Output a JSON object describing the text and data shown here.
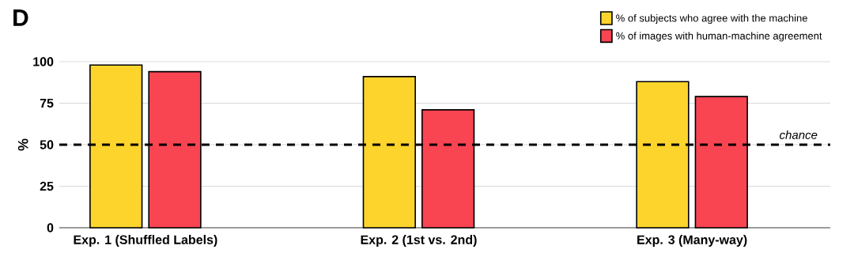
{
  "chart_data": {
    "type": "bar",
    "title": "D",
    "ylabel": "%",
    "categories": [
      "Exp. 1 (Shuffled Labels)",
      "Exp. 2 (1st vs. 2nd)",
      "Exp. 3 (Many-way)"
    ],
    "series": [
      {
        "name": "% of subjects who agree with the machine",
        "color": "#fcd42c",
        "values": [
          98,
          91,
          88
        ]
      },
      {
        "name": "% of images with human-machine agreement",
        "color": "#f94452",
        "values": [
          94,
          71,
          79
        ]
      }
    ],
    "ylim": [
      0,
      100
    ],
    "yticks": [
      0,
      25,
      50,
      75,
      100
    ],
    "grid": "y",
    "legend": "top right",
    "ref_lines": [
      {
        "axis": "y",
        "value": 50,
        "label": "chance",
        "line_style": "dashed",
        "color": "#000000"
      }
    ]
  }
}
